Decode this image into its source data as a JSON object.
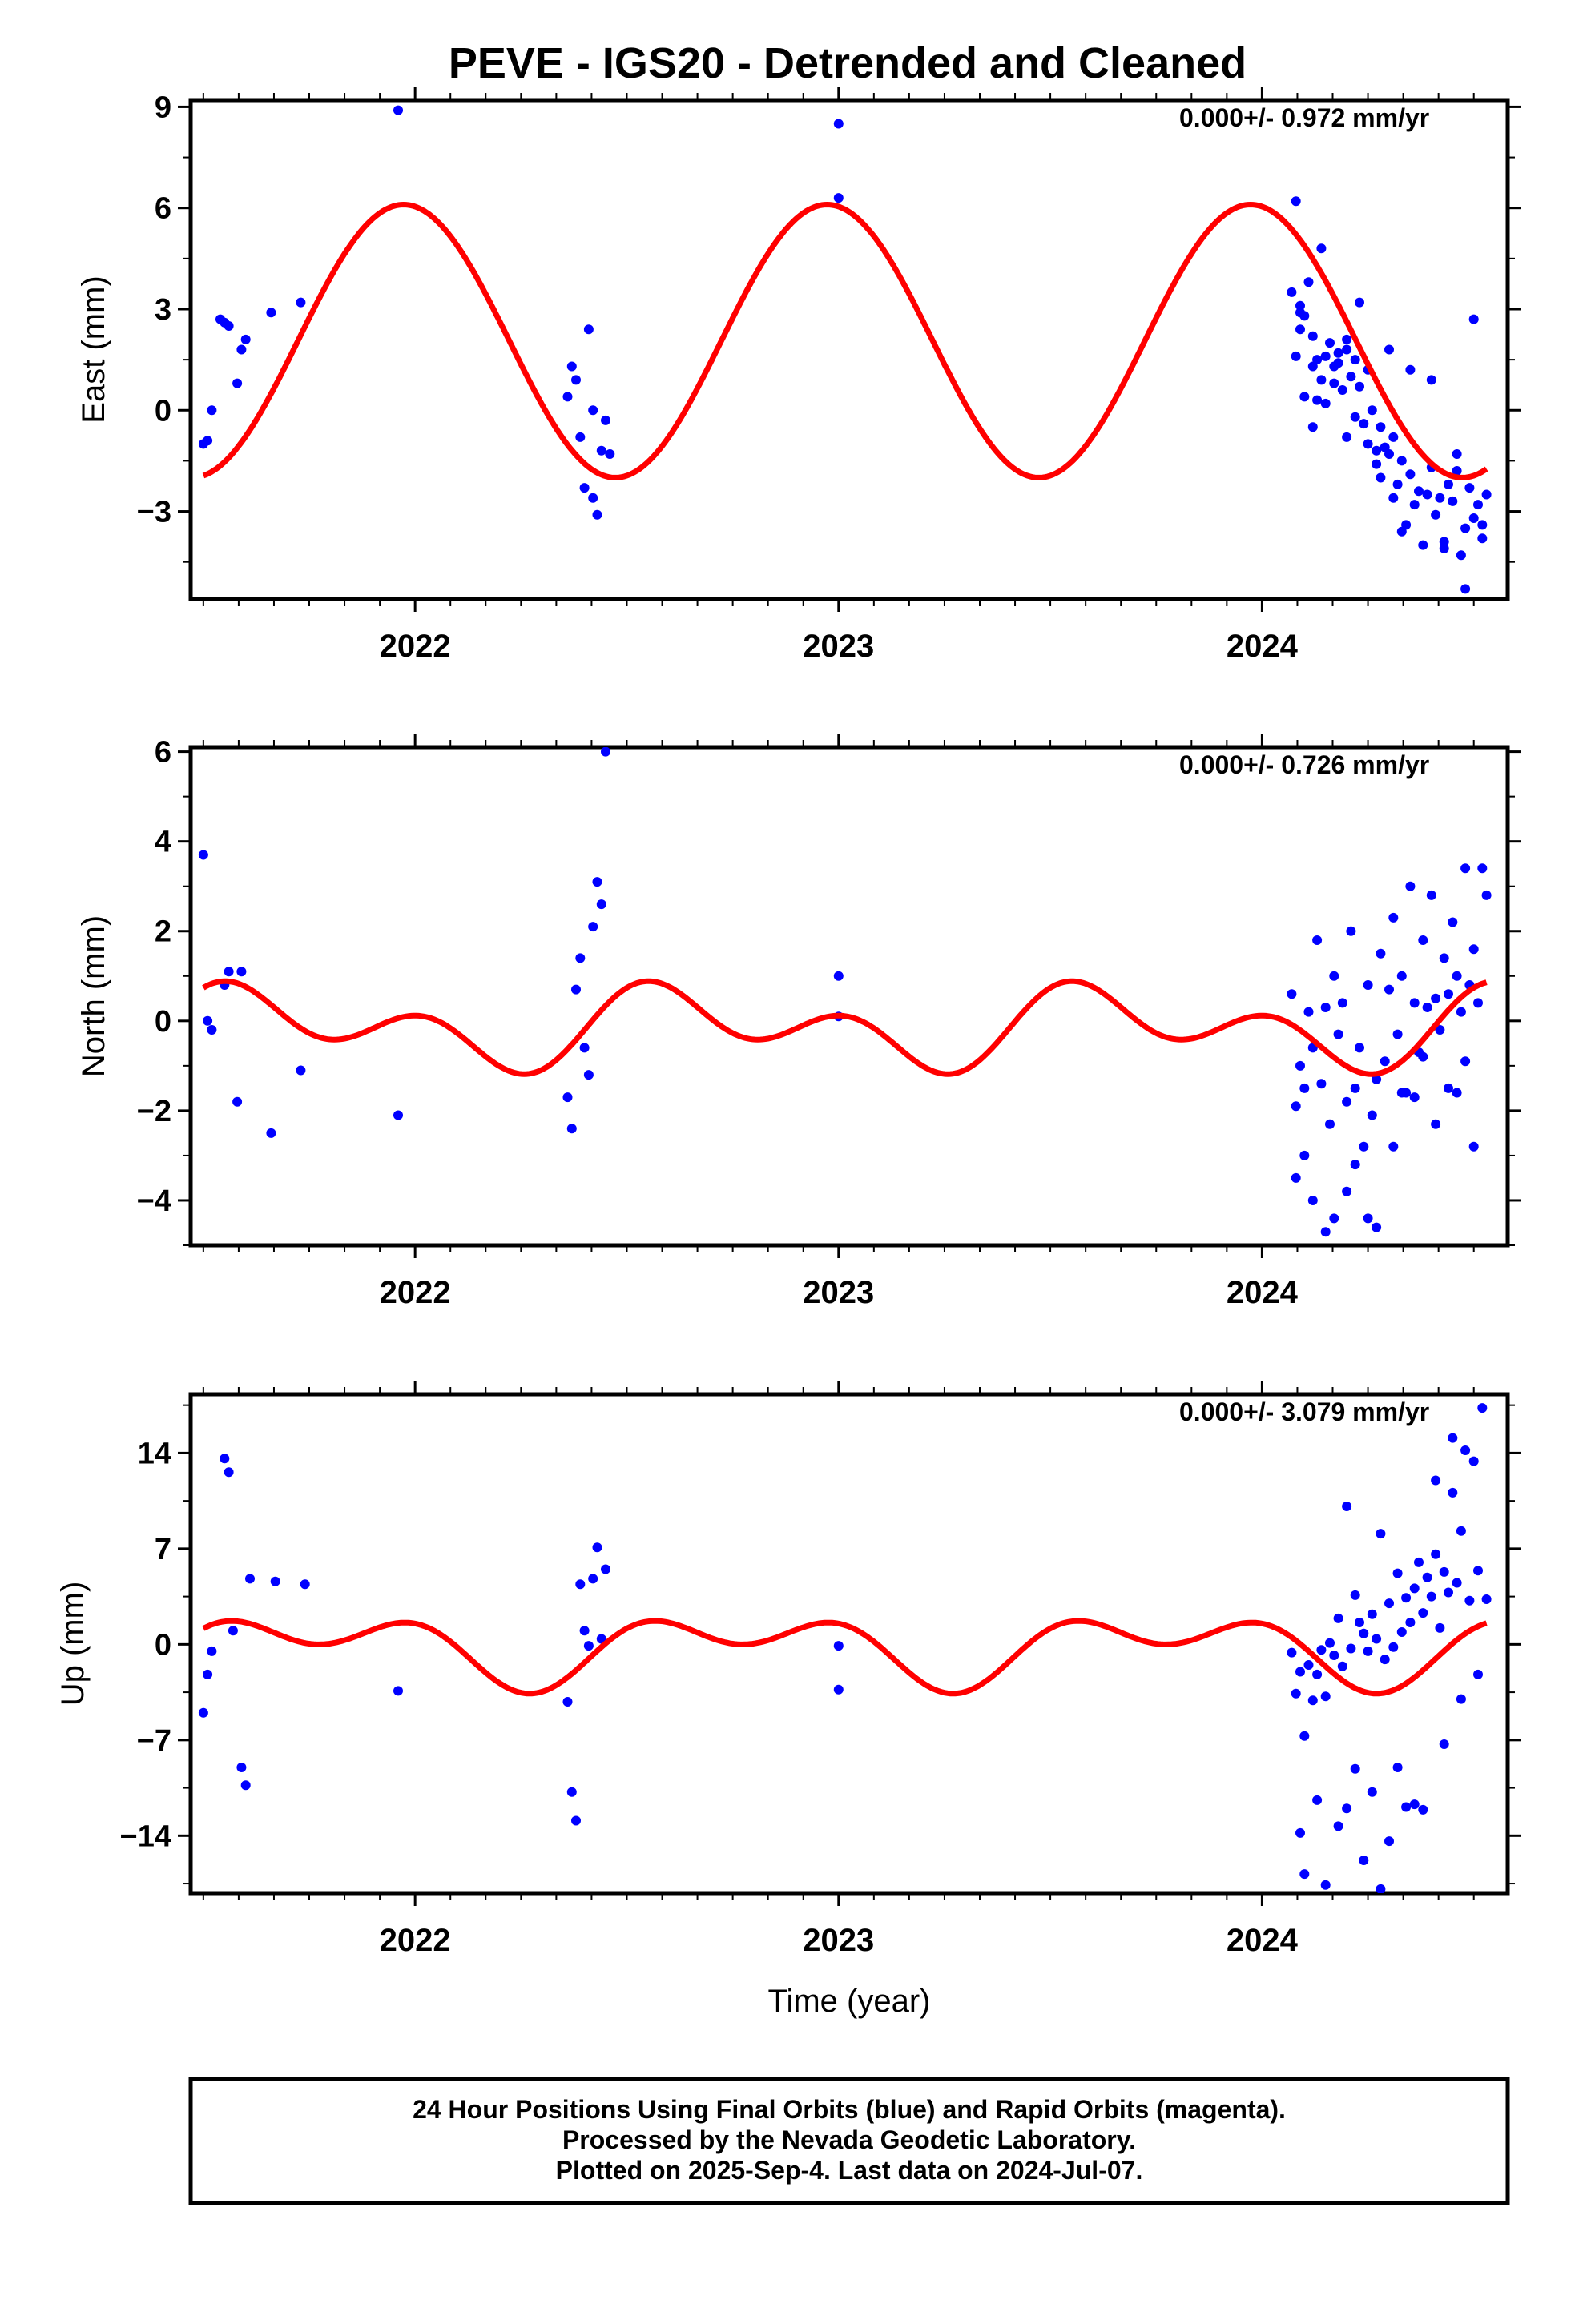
{
  "colors": {
    "final_points": "#0000ff",
    "model_curve": "#ff0000",
    "frame": "#000000"
  },
  "footer": {
    "lines": [
      "24 Hour Positions Using Final Orbits (blue) and Rapid Orbits (magenta).",
      "Processed by the Nevada Geodetic Laboratory.",
      "Plotted on 2025-Sep-4. Last data on 2024-Jul-07."
    ]
  },
  "chart_data": [
    {
      "type": "scatter",
      "title": "PEVE - IGS20 - Detrended and Cleaned",
      "ylabel": "East (mm)",
      "xlabel": "",
      "annotation": "0.000+/- 0.972 mm/yr",
      "xlim": [
        2021.47,
        2024.58
      ],
      "ylim": [
        -5.6,
        9.2
      ],
      "yticks": [
        9,
        6,
        3,
        0,
        -3
      ],
      "ytick_labels": [
        "9",
        "6",
        "3",
        "0",
        "−3"
      ],
      "xticks": [
        2022,
        2023,
        2024
      ],
      "xtick_labels": [
        "2022",
        "2023",
        "2024"
      ],
      "grid": false,
      "model": {
        "offset": 2.05,
        "a1": 4.05,
        "phase1": -1.4,
        "a2": 0.0,
        "phase2": 0.0
      },
      "series": [
        {
          "x": [
            2021.5,
            2021.51,
            2021.52,
            2021.54,
            2021.55,
            2021.56,
            2021.58,
            2021.59,
            2021.6,
            2021.66,
            2021.73,
            2021.96,
            2022.36,
            2022.37,
            2022.38,
            2022.39,
            2022.4,
            2022.41,
            2022.42,
            2022.42,
            2022.43,
            2022.44,
            2022.45,
            2022.46,
            2023.0,
            2023.0,
            2024.07,
            2024.08,
            2024.08,
            2024.09,
            2024.09,
            2024.1,
            2024.1,
            2024.11,
            2024.12,
            2024.12,
            2024.13,
            2024.13,
            2024.14,
            2024.15,
            2024.15,
            2024.16,
            2024.17,
            2024.17,
            2024.18,
            2024.19,
            2024.2,
            2024.2,
            2024.21,
            2024.22,
            2024.22,
            2024.23,
            2024.24,
            2024.25,
            2024.25,
            2024.26,
            2024.27,
            2024.28,
            2024.28,
            2024.29,
            2024.3,
            2024.31,
            2024.31,
            2024.32,
            2024.33,
            2024.34,
            2024.35,
            2024.36,
            2024.37,
            2024.38,
            2024.39,
            2024.4,
            2024.41,
            2024.42,
            2024.43,
            2024.44,
            2024.45,
            2024.46,
            2024.47,
            2024.48,
            2024.49,
            2024.5,
            2024.51,
            2024.52,
            2024.53,
            2024.09,
            2024.14,
            2024.18,
            2024.23,
            2024.3,
            2024.35,
            2024.4,
            2024.46,
            2024.5,
            2024.12,
            2024.2,
            2024.27,
            2024.33,
            2024.43,
            2024.48,
            2024.52
          ],
          "y": [
            -1.0,
            -0.9,
            0.0,
            2.7,
            2.6,
            2.5,
            0.8,
            1.8,
            2.1,
            2.9,
            3.2,
            8.9,
            0.4,
            1.3,
            0.9,
            -0.8,
            -2.3,
            2.4,
            -2.6,
            0.0,
            -3.1,
            -1.2,
            -0.3,
            -1.3,
            8.5,
            6.3,
            3.5,
            6.2,
            1.6,
            2.4,
            3.1,
            2.8,
            0.4,
            3.8,
            2.2,
            1.3,
            1.5,
            0.3,
            0.9,
            1.6,
            0.2,
            2.0,
            1.3,
            0.8,
            1.4,
            0.6,
            2.1,
            1.8,
            1.0,
            1.5,
            -0.2,
            0.7,
            -0.4,
            1.2,
            -1.0,
            0.0,
            -1.6,
            -0.5,
            -2.0,
            -1.1,
            -1.3,
            -0.8,
            -2.6,
            -2.2,
            -1.5,
            -3.4,
            -1.9,
            -2.8,
            -2.4,
            -4.0,
            -2.5,
            -1.7,
            -3.1,
            -2.6,
            -3.9,
            -2.2,
            -2.7,
            -1.8,
            -4.3,
            -3.5,
            -2.3,
            -3.2,
            -2.8,
            -3.8,
            -2.5,
            2.9,
            4.8,
            1.7,
            3.2,
            1.8,
            1.2,
            0.9,
            -1.3,
            2.7,
            -0.5,
            -0.8,
            -1.2,
            -3.6,
            -4.1,
            -5.3,
            -3.4
          ]
        }
      ]
    },
    {
      "type": "scatter",
      "title": "",
      "ylabel": "North (mm)",
      "xlabel": "",
      "annotation": "0.000+/- 0.726 mm/yr",
      "xlim": [
        2021.47,
        2024.58
      ],
      "ylim": [
        -5.0,
        6.1
      ],
      "yticks": [
        6,
        4,
        2,
        0,
        -2,
        -4
      ],
      "ytick_labels": [
        "6",
        "4",
        "2",
        "0",
        "−2",
        "−4"
      ],
      "xticks": [
        2022,
        2023,
        2024
      ],
      "xtick_labels": [
        "2022",
        "2023",
        "2024"
      ],
      "grid": false,
      "model": {
        "offset": -0.15,
        "a1": 0.55,
        "phase1": 0.6,
        "a2": 0.62,
        "phase2": 1.2
      },
      "series": [
        {
          "x": [
            2021.5,
            2021.51,
            2021.52,
            2021.55,
            2021.56,
            2021.58,
            2021.59,
            2021.66,
            2021.73,
            2021.96,
            2022.36,
            2022.37,
            2022.38,
            2022.39,
            2022.4,
            2022.41,
            2022.42,
            2022.43,
            2022.44,
            2022.45,
            2023.0,
            2023.0,
            2024.07,
            2024.08,
            2024.09,
            2024.1,
            2024.11,
            2024.12,
            2024.13,
            2024.14,
            2024.15,
            2024.16,
            2024.17,
            2024.18,
            2024.19,
            2024.2,
            2024.21,
            2024.22,
            2024.23,
            2024.24,
            2024.25,
            2024.26,
            2024.27,
            2024.28,
            2024.29,
            2024.3,
            2024.31,
            2024.32,
            2024.33,
            2024.34,
            2024.35,
            2024.36,
            2024.37,
            2024.38,
            2024.39,
            2024.4,
            2024.41,
            2024.42,
            2024.43,
            2024.44,
            2024.45,
            2024.46,
            2024.47,
            2024.48,
            2024.49,
            2024.5,
            2024.51,
            2024.52,
            2024.53,
            2024.08,
            2024.12,
            2024.17,
            2024.22,
            2024.27,
            2024.31,
            2024.36,
            2024.41,
            2024.46,
            2024.5,
            2024.1,
            2024.15,
            2024.2,
            2024.25,
            2024.33,
            2024.38,
            2024.44,
            2024.48
          ],
          "y": [
            3.7,
            0.0,
            -0.2,
            0.8,
            1.1,
            -1.8,
            1.1,
            -2.5,
            -1.1,
            -2.1,
            -1.7,
            -2.4,
            0.7,
            1.4,
            -0.6,
            -1.2,
            2.1,
            3.1,
            2.6,
            6.0,
            1.0,
            0.1,
            0.6,
            -1.9,
            -1.0,
            -1.5,
            0.2,
            -0.6,
            1.8,
            -1.4,
            0.3,
            -2.3,
            1.0,
            -0.3,
            0.4,
            -1.8,
            2.0,
            -1.5,
            -0.6,
            -2.8,
            0.8,
            -2.1,
            -1.3,
            1.5,
            -0.9,
            0.7,
            2.3,
            -0.3,
            1.0,
            -1.6,
            3.0,
            0.4,
            -0.7,
            1.8,
            0.3,
            2.8,
            0.5,
            -0.2,
            1.4,
            0.6,
            2.2,
            1.0,
            0.2,
            3.4,
            0.8,
            1.6,
            0.4,
            3.4,
            2.8,
            -3.5,
            -4.0,
            -4.4,
            -3.2,
            -4.6,
            -2.8,
            -1.7,
            -2.3,
            -1.6,
            -2.8,
            -3.0,
            -4.7,
            -3.8,
            -4.4,
            -1.6,
            -0.8,
            -1.5,
            -0.9
          ]
        }
      ]
    },
    {
      "type": "scatter",
      "title": "",
      "ylabel": "Up (mm)",
      "xlabel": "Time (year)",
      "annotation": "0.000+/- 3.079 mm/yr",
      "xlim": [
        2021.47,
        2024.58
      ],
      "ylim": [
        -18.2,
        18.3
      ],
      "yticks": [
        14,
        7,
        0,
        -7,
        -14
      ],
      "ytick_labels": [
        "14",
        "7",
        "0",
        "−7",
        "−14"
      ],
      "xticks": [
        2022,
        2023,
        2024
      ],
      "xtick_labels": [
        "2022",
        "2023",
        "2024"
      ],
      "grid": false,
      "model": {
        "offset": -0.2,
        "a1": 1.8,
        "phase1": -0.1,
        "a2": 1.6,
        "phase2": 1.3
      },
      "series": [
        {
          "x": [
            2021.5,
            2021.51,
            2021.52,
            2021.55,
            2021.56,
            2021.57,
            2021.59,
            2021.6,
            2021.61,
            2021.67,
            2021.74,
            2021.96,
            2022.36,
            2022.37,
            2022.38,
            2022.39,
            2022.4,
            2022.41,
            2022.42,
            2022.43,
            2022.44,
            2022.45,
            2023.0,
            2023.0,
            2024.07,
            2024.08,
            2024.09,
            2024.1,
            2024.11,
            2024.12,
            2024.13,
            2024.14,
            2024.15,
            2024.16,
            2024.17,
            2024.18,
            2024.19,
            2024.2,
            2024.21,
            2024.22,
            2024.23,
            2024.24,
            2024.25,
            2024.26,
            2024.27,
            2024.28,
            2024.29,
            2024.3,
            2024.31,
            2024.32,
            2024.33,
            2024.34,
            2024.35,
            2024.36,
            2024.37,
            2024.38,
            2024.39,
            2024.4,
            2024.41,
            2024.42,
            2024.43,
            2024.44,
            2024.45,
            2024.46,
            2024.47,
            2024.48,
            2024.49,
            2024.5,
            2024.51,
            2024.52,
            2024.53,
            2024.09,
            2024.13,
            2024.18,
            2024.22,
            2024.26,
            2024.3,
            2024.34,
            2024.38,
            2024.43,
            2024.47,
            2024.51,
            2024.1,
            2024.15,
            2024.2,
            2024.24,
            2024.28,
            2024.32,
            2024.36,
            2024.41,
            2024.45
          ],
          "y": [
            -5.0,
            -2.2,
            -0.5,
            13.6,
            12.6,
            1.0,
            -9.0,
            -10.3,
            4.8,
            4.6,
            4.4,
            -3.4,
            -4.2,
            -10.8,
            -12.9,
            4.4,
            1.0,
            -0.1,
            4.8,
            7.1,
            0.4,
            5.5,
            -0.1,
            -3.3,
            -0.6,
            -3.6,
            -2.0,
            -6.7,
            -1.5,
            -4.1,
            -2.2,
            -0.4,
            -3.8,
            0.1,
            -0.8,
            1.9,
            -1.6,
            10.1,
            -0.3,
            3.6,
            1.6,
            0.8,
            -0.5,
            2.2,
            0.4,
            8.1,
            -1.1,
            3.0,
            -0.2,
            5.2,
            0.9,
            3.4,
            1.6,
            4.1,
            6.0,
            2.3,
            4.9,
            3.5,
            6.6,
            1.2,
            5.3,
            3.8,
            11.1,
            4.5,
            8.3,
            14.2,
            3.2,
            13.4,
            5.4,
            17.3,
            3.3,
            -13.8,
            -11.4,
            -13.3,
            -9.1,
            -10.8,
            -14.4,
            -11.9,
            -12.1,
            -7.3,
            -4.0,
            -2.2,
            -16.8,
            -17.6,
            -12.0,
            -15.8,
            -17.9,
            -9.0,
            -11.7,
            12.0,
            15.1
          ]
        }
      ]
    }
  ]
}
